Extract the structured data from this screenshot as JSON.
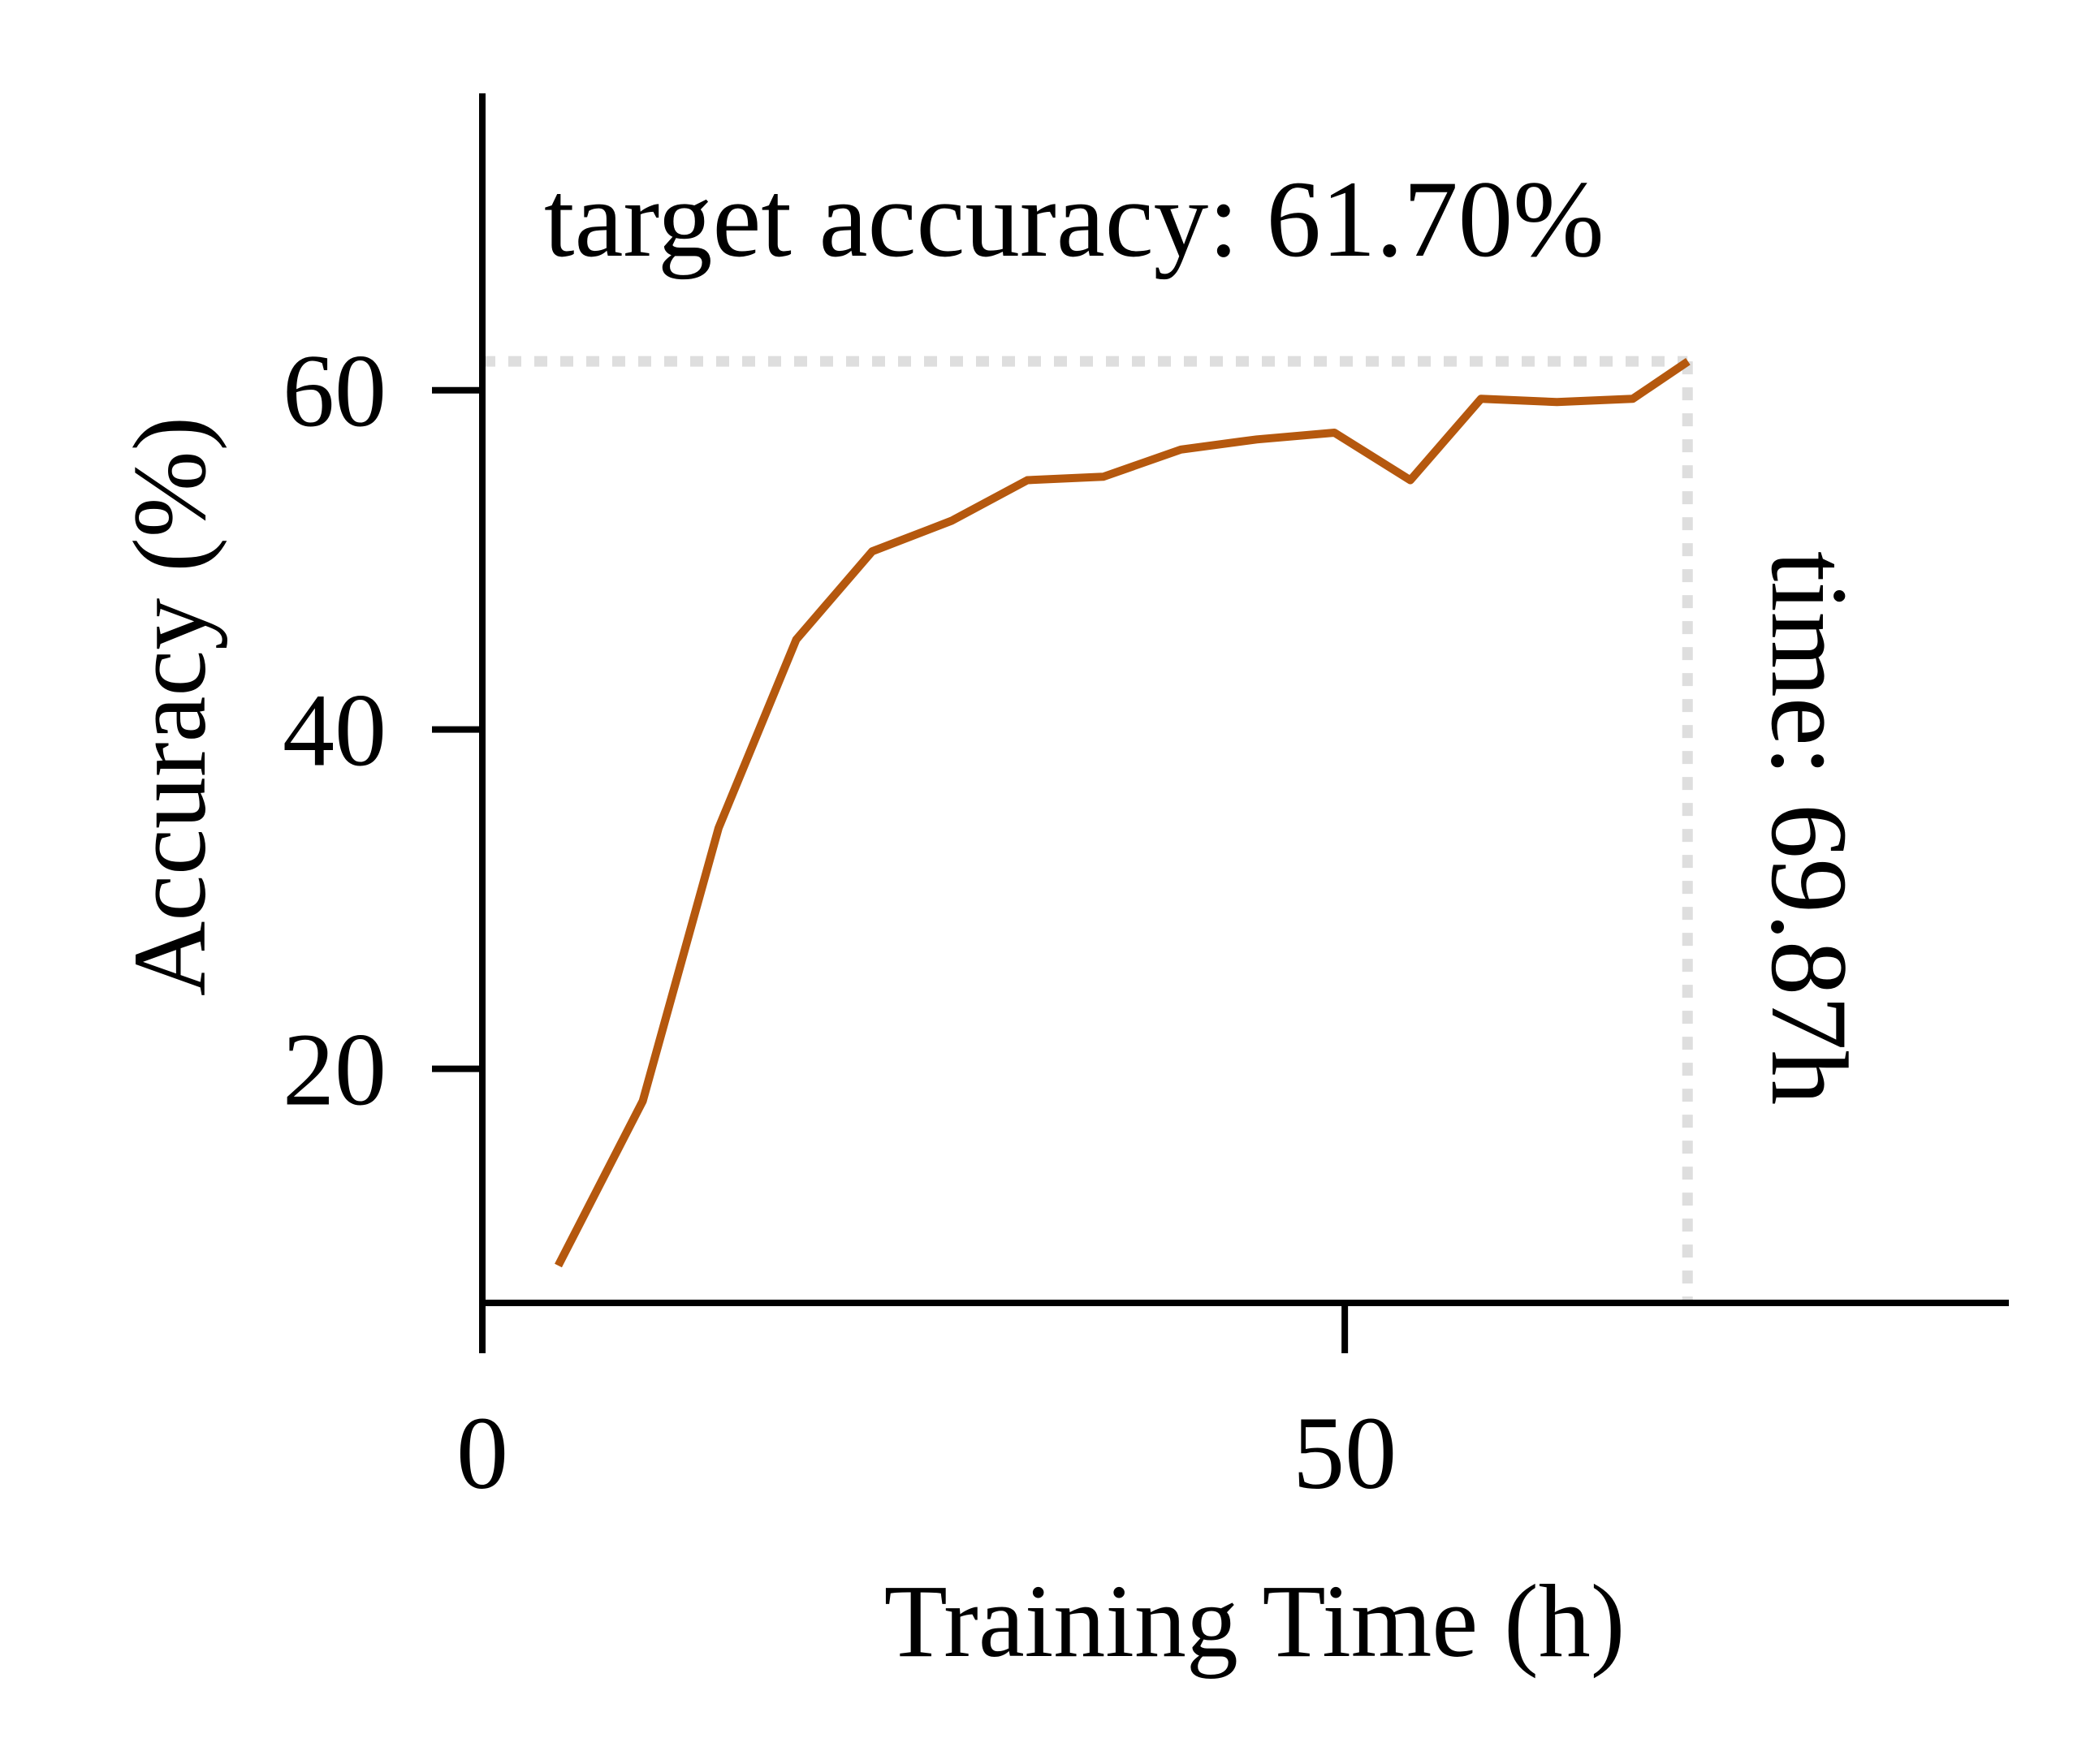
{
  "chart_data": {
    "type": "line",
    "xlabel": "Training Time (h)",
    "ylabel": "Accuracy (%)",
    "xlim": [
      0,
      88.5
    ],
    "ylim": [
      6.2,
      77.5
    ],
    "xticks": [
      0,
      50
    ],
    "yticks": [
      20,
      40,
      60
    ],
    "grid": false,
    "legend": "none",
    "line_color": "#b5580e",
    "reference_color": "#dedede",
    "series": [
      {
        "x": [
          4.4,
          9.3,
          13.7,
          18.2,
          22.6,
          27.2,
          31.6,
          36.0,
          40.5,
          44.9,
          49.4,
          53.8,
          57.9,
          62.3,
          66.7,
          69.9
        ],
        "y": [
          8.4,
          18.1,
          34.2,
          45.3,
          50.5,
          52.3,
          54.7,
          54.9,
          56.5,
          57.1,
          57.5,
          54.7,
          59.5,
          59.3,
          59.5,
          61.7
        ]
      }
    ],
    "target": {
      "accuracy": 61.7,
      "time": 69.87,
      "accuracy_label": "target accuracy: 61.70%",
      "time_label": "time: 69.87h"
    }
  }
}
